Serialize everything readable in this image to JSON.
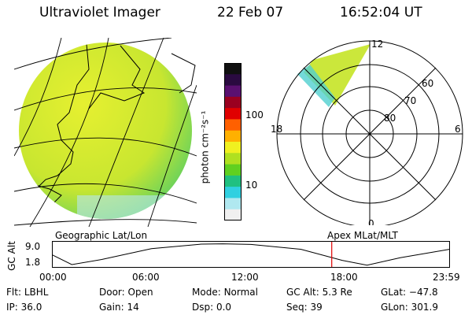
{
  "header": {
    "instrument": "Ultraviolet Imager",
    "date": "22 Feb 07",
    "time": "16:52:04 UT"
  },
  "colorbar": {
    "unit_label": "photon cm⁻²s⁻¹",
    "ticks": [
      "100",
      "10"
    ],
    "colors": [
      "#101010",
      "#2a0a40",
      "#5a1070",
      "#9a0020",
      "#e00000",
      "#ff6000",
      "#ffb000",
      "#f0f020",
      "#b0e020",
      "#60d020",
      "#20c080",
      "#30d0e0",
      "#b0e8f0",
      "#f0f0f0"
    ]
  },
  "left_panel": {
    "caption": "Geographic Lat/Lon",
    "image_colors": {
      "main": "#c8e630",
      "light": "#e6f030",
      "edge": "#60d060",
      "rim": "#b8e8f0"
    }
  },
  "right_panel": {
    "caption": "Apex MLat/MLT",
    "mlt_labels": {
      "top": "12",
      "left": "18",
      "right": "6",
      "bottom": "0"
    },
    "mlat_labels": [
      "60",
      "70",
      "80"
    ]
  },
  "timeline": {
    "ylabel": "GC Alt",
    "yticks": [
      "9.0",
      "1.8"
    ],
    "xticks": [
      "00:00",
      "06:00",
      "12:00",
      "18:00",
      "23:59"
    ],
    "marker_color": "#e00000",
    "marker_hour": 16.87,
    "curve_hours": [
      0,
      1.2,
      3,
      6,
      9,
      10.3,
      12,
      15,
      17.5,
      19,
      21,
      23.99
    ],
    "curve_alt": [
      5.3,
      1.8,
      3.6,
      7.4,
      9.0,
      9.1,
      8.9,
      7.2,
      3.3,
      1.6,
      4.2,
      7.2
    ]
  },
  "status": {
    "flt_label": "Flt:",
    "flt_value": "LBHL",
    "ip_label": "IP:",
    "ip_value": "36.0",
    "door_label": "Door:",
    "door_value": "Open",
    "gain_label": "Gain:",
    "gain_value": "14",
    "mode_label": "Mode:",
    "mode_value": "Normal",
    "dsp_label": "Dsp:",
    "dsp_value": "0.0",
    "gcalt_label": "GC Alt:",
    "gcalt_value": "5.3 Re",
    "seq_label": "Seq:",
    "seq_value": "39",
    "glat_label": "GLat:",
    "glat_value": "−47.8",
    "glon_label": "GLon:",
    "glon_value": "301.9"
  }
}
